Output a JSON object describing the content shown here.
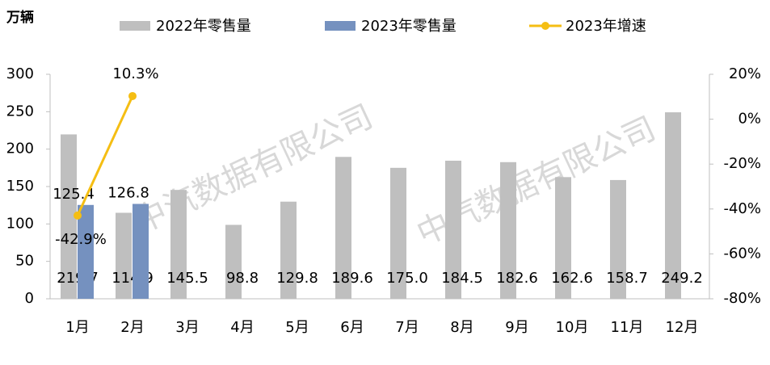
{
  "chart_data": {
    "type": "bar",
    "unit_label": "万辆",
    "categories": [
      "1月",
      "2月",
      "3月",
      "4月",
      "5月",
      "6月",
      "7月",
      "8月",
      "9月",
      "10月",
      "11月",
      "12月"
    ],
    "series": [
      {
        "name": "2022年零售量",
        "color": "#bfbfbf",
        "values": [
          219.7,
          114.9,
          145.5,
          98.8,
          129.8,
          189.6,
          175.0,
          184.5,
          182.6,
          162.6,
          158.7,
          249.2
        ],
        "value_labels": [
          "219.7",
          "114.9",
          "145.5",
          "98.8",
          "129.8",
          "189.6",
          "175.0",
          "184.5",
          "182.6",
          "162.6",
          "158.7",
          "249.2"
        ]
      },
      {
        "name": "2023年零售量",
        "color": "#7591bf",
        "values": [
          125.4,
          126.8,
          null,
          null,
          null,
          null,
          null,
          null,
          null,
          null,
          null,
          null
        ]
      },
      {
        "name": "2023年增速",
        "color": "#f5be13",
        "type": "line",
        "axis": "y2",
        "values": [
          -42.9,
          10.3,
          null,
          null,
          null,
          null,
          null,
          null,
          null,
          null,
          null,
          null
        ],
        "value_labels": [
          "-42.9%",
          "10.3%",
          null,
          null,
          null,
          null,
          null,
          null,
          null,
          null,
          null,
          null
        ]
      }
    ],
    "ylim": [
      0,
      300
    ],
    "yticks": [
      0,
      50,
      100,
      150,
      200,
      250,
      300
    ],
    "y2lim": [
      -80,
      20
    ],
    "y2ticks": [
      {
        "value": -80,
        "label": "-80%"
      },
      {
        "value": -60,
        "label": "-60%"
      },
      {
        "value": -40,
        "label": "-40%"
      },
      {
        "value": -20,
        "label": "-20%"
      },
      {
        "value": 0,
        "label": "0%"
      },
      {
        "value": 20,
        "label": "20%"
      }
    ],
    "legend": "top",
    "watermark": [
      "中汽数据有限公司",
      "中汽数据有限公司"
    ]
  }
}
